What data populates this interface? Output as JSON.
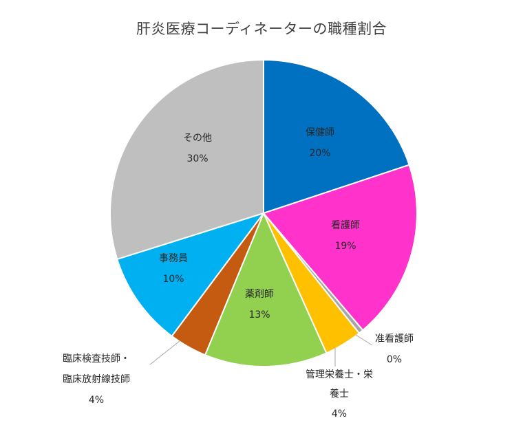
{
  "chart_data": {
    "type": "pie",
    "title": "肝炎医療コーディネーターの職種割合",
    "start_angle_deg": 0,
    "direction": "clockwise",
    "legend": "none",
    "slices": [
      {
        "name": "保健師",
        "value": 20,
        "label": "20%",
        "color": "#0070C0"
      },
      {
        "name": "看護師",
        "value": 19,
        "label": "19%",
        "color": "#FF33CC"
      },
      {
        "name": "准看護師",
        "value": 0.5,
        "label": "0%",
        "color": "#A6A6A6"
      },
      {
        "name": "管理栄養士・栄養士",
        "name_lines": [
          "管理栄養士・栄",
          "養士"
        ],
        "value": 4,
        "label": "4%",
        "color": "#FFC000"
      },
      {
        "name": "薬剤師",
        "value": 13,
        "label": "13%",
        "color": "#92D050"
      },
      {
        "name": "臨床検査技師・臨床放射線技師",
        "name_lines": [
          "臨床検査技師・",
          "臨床放射線技師"
        ],
        "value": 4,
        "label": "4%",
        "color": "#C55A11"
      },
      {
        "name": "事務員",
        "value": 10,
        "label": "10%",
        "color": "#00B0F0"
      },
      {
        "name": "その他",
        "value": 30,
        "label": "30%",
        "color": "#BFBFBF"
      }
    ]
  }
}
